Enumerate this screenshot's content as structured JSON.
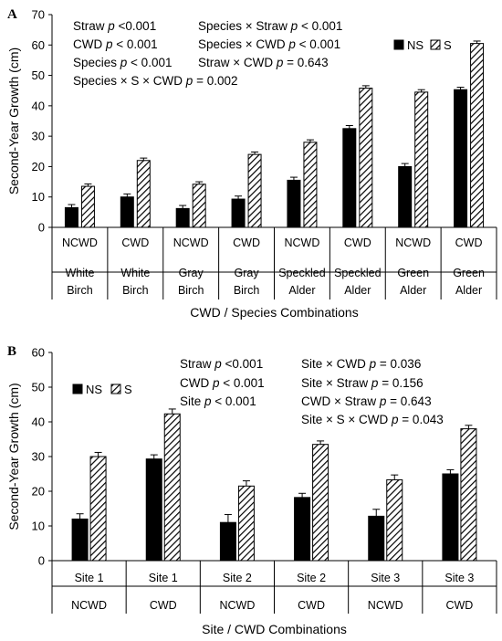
{
  "colors": {
    "ns": "#000000",
    "s_hatch": "#000000",
    "background": "#ffffff"
  },
  "chart_data": [
    {
      "type": "bar",
      "panel_label": "A",
      "ylabel": "Second-Year Growth (cm)",
      "xlabel": "CWD / Species Combinations",
      "ylim": [
        0,
        70
      ],
      "yticks": [
        0,
        10,
        20,
        30,
        40,
        50,
        60,
        70
      ],
      "categories": [
        [
          "NCWD",
          "White",
          "Birch"
        ],
        [
          "CWD",
          "White",
          "Birch"
        ],
        [
          "NCWD",
          "Gray",
          "Birch"
        ],
        [
          "CWD",
          "Gray",
          "Birch"
        ],
        [
          "NCWD",
          "Speckled",
          "Alder"
        ],
        [
          "CWD",
          "Speckled",
          "Alder"
        ],
        [
          "NCWD",
          "Green",
          "Alder"
        ],
        [
          "CWD",
          "Green",
          "Alder"
        ]
      ],
      "series": [
        {
          "name": "NS",
          "pattern": "solid",
          "values": [
            6.5,
            10.0,
            6.2,
            9.3,
            15.5,
            32.5,
            20.0,
            45.3
          ],
          "errors": [
            1.0,
            1.0,
            1.0,
            1.0,
            1.0,
            1.0,
            1.0,
            0.8
          ]
        },
        {
          "name": "S",
          "pattern": "hatch",
          "values": [
            13.5,
            22.0,
            14.2,
            24.0,
            28.0,
            45.8,
            44.5,
            60.5
          ],
          "errors": [
            0.8,
            0.8,
            0.8,
            0.8,
            0.8,
            0.8,
            0.8,
            0.8
          ]
        }
      ],
      "legend_position": "top-right",
      "annotations": [
        [
          "Straw ",
          "p",
          "  <0.001"
        ],
        [
          "Species × Straw ",
          "p",
          " < 0.001"
        ],
        [
          "CWD ",
          "p",
          " < 0.001"
        ],
        [
          "Species × CWD ",
          "p",
          " < 0.001"
        ],
        [
          "Species ",
          "p",
          " < 0.001"
        ],
        [
          "Straw × CWD ",
          "p",
          " = 0.643"
        ],
        [
          "Species × S × CWD ",
          "p",
          " = 0.002"
        ]
      ]
    },
    {
      "type": "bar",
      "panel_label": "B",
      "ylabel": "Second-Year Growth (cm)",
      "xlabel": "Site / CWD Combinations",
      "ylim": [
        0,
        60
      ],
      "yticks": [
        0,
        10,
        20,
        30,
        40,
        50,
        60
      ],
      "categories": [
        [
          "Site 1",
          "NCWD"
        ],
        [
          "Site 1",
          "CWD"
        ],
        [
          "Site 2",
          "NCWD"
        ],
        [
          "Site 2",
          "CWD"
        ],
        [
          "Site 3",
          "NCWD"
        ],
        [
          "Site 3",
          "CWD"
        ]
      ],
      "series": [
        {
          "name": "NS",
          "pattern": "solid",
          "values": [
            12.0,
            29.3,
            11.0,
            18.2,
            12.8,
            25.0
          ],
          "errors": [
            1.5,
            1.2,
            2.3,
            1.2,
            2.0,
            1.2
          ]
        },
        {
          "name": "S",
          "pattern": "hatch",
          "values": [
            30.0,
            42.3,
            21.5,
            33.5,
            23.3,
            38.0
          ],
          "errors": [
            1.2,
            1.4,
            1.5,
            1.0,
            1.4,
            1.0
          ]
        }
      ],
      "legend_position": "top-left",
      "annotations": [
        [
          "Straw ",
          "p",
          " <0.001"
        ],
        [
          "Site × CWD ",
          "p",
          " = 0.036"
        ],
        [
          "CWD ",
          "p",
          " < 0.001"
        ],
        [
          "Site × Straw ",
          "p",
          " = 0.156"
        ],
        [
          "Site ",
          "p",
          " < 0.001"
        ],
        [
          "CWD × Straw ",
          "p",
          " = 0.643"
        ],
        [
          "Site × S × CWD ",
          "p",
          " = 0.043"
        ]
      ]
    }
  ]
}
